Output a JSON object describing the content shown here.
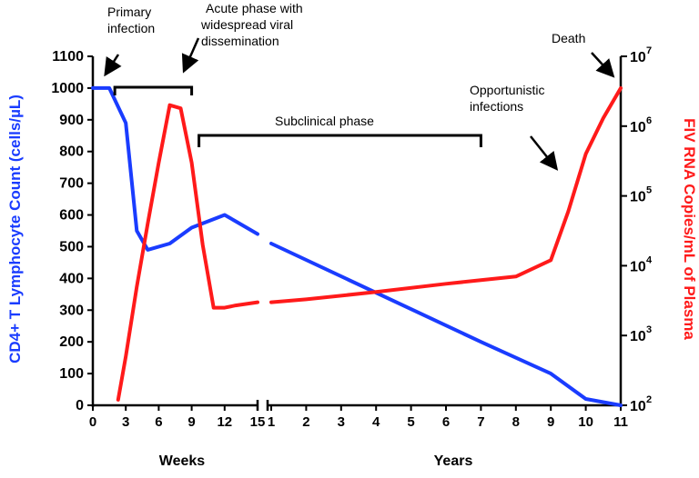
{
  "chart_data": {
    "type": "line",
    "ylabel_left": "CD4+  T Lymphocyte  Count (cells/µL)",
    "ylabel_right": "FIV RNA Copies/mL of Plasma",
    "xlabel_weeks": "Weeks",
    "xlabel_years": "Years",
    "left_axis": {
      "ylim": [
        0,
        1100
      ],
      "ticks": [
        "0",
        "100",
        "200",
        "300",
        "400",
        "500",
        "600",
        "700",
        "800",
        "900",
        "1000",
        "1100"
      ],
      "color": "#1a3cff"
    },
    "right_axis": {
      "scale": "log",
      "ylim": [
        100,
        10000000
      ],
      "tick_base": "10",
      "tick_exponents": [
        "2",
        "3",
        "4",
        "5",
        "6",
        "7"
      ],
      "color": "#ff1a1a"
    },
    "x_weeks_ticks": [
      "0",
      "3",
      "6",
      "9",
      "12",
      "15"
    ],
    "x_years_ticks": [
      "1",
      "2",
      "3",
      "4",
      "5",
      "6",
      "7",
      "8",
      "9",
      "10",
      "11"
    ],
    "series": [
      {
        "color": "#1a3cff",
        "axis": "left",
        "weeks_points": [
          [
            0,
            1000
          ],
          [
            1.5,
            1000
          ],
          [
            3,
            890
          ],
          [
            4,
            550
          ],
          [
            5,
            490
          ],
          [
            7,
            510
          ],
          [
            9,
            560
          ],
          [
            10.5,
            580
          ],
          [
            12,
            600
          ],
          [
            13,
            580
          ],
          [
            15,
            540
          ]
        ],
        "years_points": [
          [
            1,
            510
          ],
          [
            7,
            200
          ],
          [
            9,
            100
          ],
          [
            10,
            20
          ],
          [
            11,
            0
          ]
        ]
      },
      {
        "color": "#ff1a1a",
        "axis": "right",
        "weeks_points": [
          [
            2.3,
            120
          ],
          [
            3,
            500
          ],
          [
            4,
            5000
          ],
          [
            5,
            40000
          ],
          [
            6,
            300000
          ],
          [
            7,
            2000000
          ],
          [
            8,
            1800000
          ],
          [
            9,
            300000
          ],
          [
            10,
            20000
          ],
          [
            11,
            2500
          ],
          [
            12,
            2500
          ],
          [
            13,
            2700
          ],
          [
            15,
            3000
          ]
        ],
        "years_points": [
          [
            1,
            3000
          ],
          [
            2,
            3300
          ],
          [
            4,
            4200
          ],
          [
            6,
            5500
          ],
          [
            7,
            6200
          ],
          [
            8,
            7000
          ],
          [
            9,
            12000
          ],
          [
            9.5,
            60000
          ],
          [
            10,
            400000
          ],
          [
            10.5,
            1300000
          ],
          [
            11,
            3500000
          ]
        ]
      }
    ],
    "annotations": {
      "primary_line1": "Primary",
      "primary_line2": "infection",
      "acute_line1": "Acute phase with",
      "acute_line2": "widespread viral",
      "acute_line3": "dissemination",
      "subclinical": "Subclinical phase",
      "opp_line1": "Opportunistic",
      "opp_line2": "infections",
      "death": "Death"
    },
    "brackets": {
      "acute_weeks": [
        2,
        9
      ],
      "subclinical": {
        "from_weeks": 9,
        "to_years": 7
      }
    }
  }
}
